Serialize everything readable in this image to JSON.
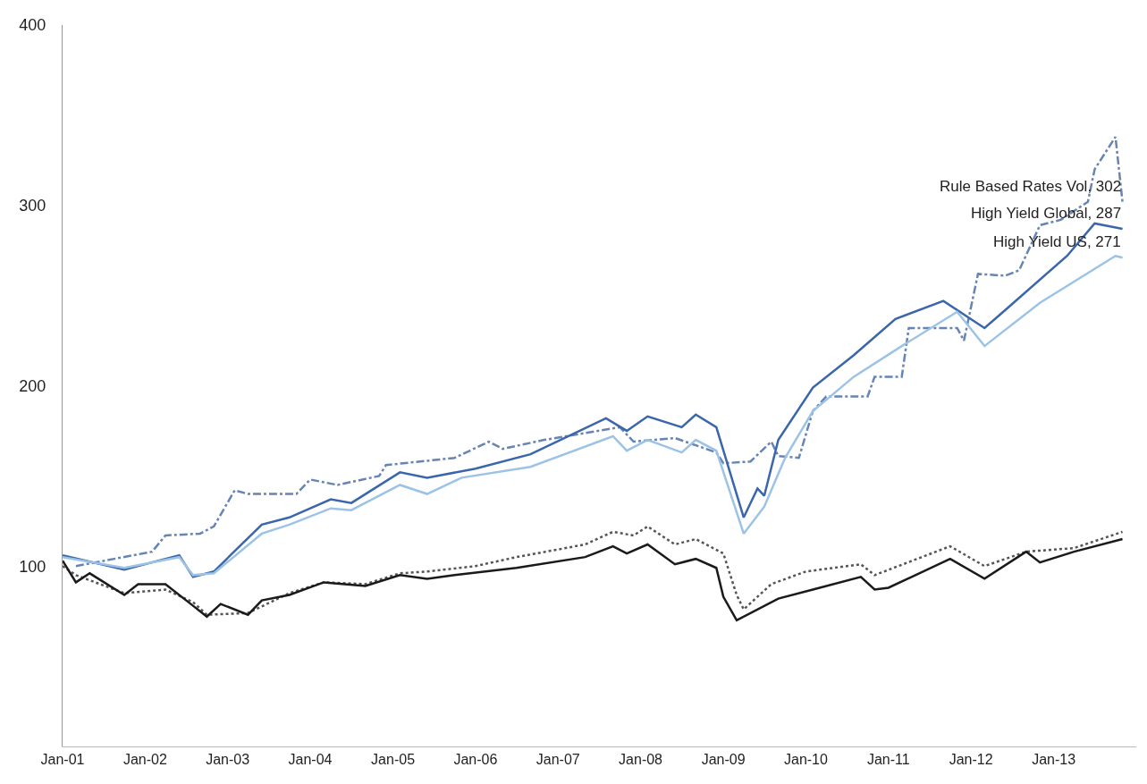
{
  "chart_data": {
    "type": "line",
    "xlim": [
      "2001-01",
      "2014-01"
    ],
    "ylim": [
      0,
      400
    ],
    "yticks": [
      100,
      200,
      300,
      400
    ],
    "xticks": [
      {
        "value": "2001-01",
        "label": "Jan-01"
      },
      {
        "value": "2002-01",
        "label": "Jan-02"
      },
      {
        "value": "2003-01",
        "label": "Jan-03"
      },
      {
        "value": "2004-01",
        "label": "Jan-04"
      },
      {
        "value": "2005-01",
        "label": "Jan-05"
      },
      {
        "value": "2006-01",
        "label": "Jan-06"
      },
      {
        "value": "2007-01",
        "label": "Jan-07"
      },
      {
        "value": "2008-01",
        "label": "Jan-08"
      },
      {
        "value": "2009-01",
        "label": "Jan-09"
      },
      {
        "value": "2010-01",
        "label": "Jan-10"
      },
      {
        "value": "2011-01",
        "label": "Jan-11"
      },
      {
        "value": "2012-01",
        "label": "Jan-12"
      },
      {
        "value": "2013-01",
        "label": "Jan-13"
      }
    ],
    "annotations": [
      {
        "text": "Rule Based Rates Vol, 302",
        "x": "2013-11",
        "y": 302
      },
      {
        "text": "High Yield Global, 287",
        "x": "2013-11",
        "y": 287
      },
      {
        "text": "High Yield US, 271",
        "x": "2013-11",
        "y": 271
      }
    ],
    "grid": false,
    "marker": "none",
    "series": [
      {
        "color": "#6684b4",
        "line_style": "dashed",
        "x": [
          "2001-03",
          "2002-02",
          "2002-04",
          "2002-09",
          "2002-11",
          "2003-02",
          "2003-04",
          "2003-11",
          "2004-01",
          "2004-05",
          "2004-11",
          "2004-12",
          "2005-10",
          "2006-03",
          "2006-05",
          "2006-11",
          "2007-10",
          "2007-12",
          "2008-06",
          "2008-12",
          "2009-01",
          "2009-05",
          "2009-08",
          "2009-09",
          "2009-12",
          "2010-02",
          "2010-04",
          "2010-10",
          "2010-11",
          "2011-03",
          "2011-04",
          "2011-11",
          "2011-12",
          "2012-02",
          "2012-06",
          "2012-08",
          "2012-11",
          "2013-02",
          "2013-06",
          "2013-07",
          "2013-10",
          "2013-11"
        ],
        "values": [
          100,
          108,
          117,
          118,
          122,
          142,
          140,
          140,
          148,
          145,
          150,
          156,
          160,
          169,
          165,
          170,
          177,
          169,
          171,
          163,
          157,
          158,
          169,
          161,
          160,
          186,
          194,
          194,
          205,
          205,
          232,
          232,
          225,
          262,
          261,
          264,
          289,
          292,
          302,
          320,
          338,
          302
        ]
      },
      {
        "color": "#3a66ab",
        "line_style": "solid",
        "x": [
          "2001-01",
          "2001-10",
          "2002-06",
          "2002-08",
          "2002-11",
          "2003-06",
          "2003-10",
          "2004-04",
          "2004-07",
          "2005-02",
          "2005-06",
          "2006-01",
          "2006-09",
          "2007-08",
          "2007-11",
          "2008-02",
          "2008-07",
          "2008-09",
          "2008-12",
          "2009-04",
          "2009-06",
          "2009-07",
          "2009-09",
          "2010-02",
          "2010-08",
          "2011-02",
          "2011-09",
          "2012-03",
          "2012-06",
          "2013-03",
          "2013-07",
          "2013-11"
        ],
        "values": [
          106,
          98,
          106,
          94,
          97,
          123,
          127,
          137,
          135,
          152,
          149,
          154,
          162,
          182,
          175,
          183,
          177,
          184,
          177,
          127,
          143,
          139,
          170,
          199,
          217,
          237,
          247,
          232,
          242,
          272,
          290,
          287
        ]
      },
      {
        "color": "#9cc3e6",
        "line_style": "solid",
        "x": [
          "2001-01",
          "2001-10",
          "2002-06",
          "2002-08",
          "2002-11",
          "2003-06",
          "2003-10",
          "2004-04",
          "2004-07",
          "2005-02",
          "2005-06",
          "2005-11",
          "2006-09",
          "2007-09",
          "2007-11",
          "2008-02",
          "2008-07",
          "2008-09",
          "2008-12",
          "2009-04",
          "2009-07",
          "2009-10",
          "2010-02",
          "2010-08",
          "2011-03",
          "2011-11",
          "2012-03",
          "2012-11",
          "2013-10",
          "2013-11"
        ],
        "values": [
          105,
          99,
          105,
          95,
          96,
          118,
          123,
          132,
          131,
          145,
          140,
          149,
          155,
          172,
          164,
          170,
          163,
          170,
          164,
          118,
          133,
          160,
          186,
          205,
          222,
          241,
          222,
          246,
          272,
          271
        ]
      },
      {
        "color": "#555555",
        "line_style": "dotted",
        "x": [
          "2001-01",
          "2001-03",
          "2001-10",
          "2002-04",
          "2002-08",
          "2002-10",
          "2003-04",
          "2003-10",
          "2004-03",
          "2004-09",
          "2005-02",
          "2005-06",
          "2006-01",
          "2006-07",
          "2007-05",
          "2007-09",
          "2007-12",
          "2008-02",
          "2008-06",
          "2008-09",
          "2009-01",
          "2009-03",
          "2009-04",
          "2009-08",
          "2010-01",
          "2010-09",
          "2010-11",
          "2011-10",
          "2012-03",
          "2012-09",
          "2013-04",
          "2013-11"
        ],
        "values": [
          100,
          95,
          85,
          87,
          80,
          73,
          74,
          85,
          91,
          90,
          96,
          97,
          100,
          105,
          112,
          119,
          117,
          122,
          112,
          115,
          107,
          84,
          76,
          90,
          97,
          101,
          95,
          111,
          100,
          108,
          110,
          119
        ]
      },
      {
        "color": "#1a1a1a",
        "line_style": "solid",
        "x": [
          "2001-01",
          "2001-03",
          "2001-05",
          "2001-10",
          "2001-12",
          "2002-04",
          "2002-08",
          "2002-10",
          "2002-12",
          "2003-04",
          "2003-06",
          "2003-10",
          "2004-03",
          "2004-09",
          "2005-02",
          "2005-06",
          "2005-10",
          "2006-07",
          "2007-05",
          "2007-09",
          "2007-11",
          "2008-02",
          "2008-06",
          "2008-09",
          "2008-12",
          "2009-01",
          "2009-03",
          "2009-09",
          "2010-02",
          "2010-09",
          "2010-11",
          "2011-01",
          "2011-10",
          "2012-03",
          "2012-09",
          "2012-11",
          "2013-04",
          "2013-11"
        ],
        "values": [
          103,
          91,
          96,
          84,
          90,
          90,
          78,
          72,
          79,
          73,
          81,
          84,
          91,
          89,
          95,
          93,
          95,
          99,
          105,
          111,
          107,
          112,
          101,
          104,
          99,
          83,
          70,
          82,
          87,
          94,
          87,
          88,
          104,
          93,
          108,
          102,
          108,
          115
        ]
      }
    ]
  }
}
